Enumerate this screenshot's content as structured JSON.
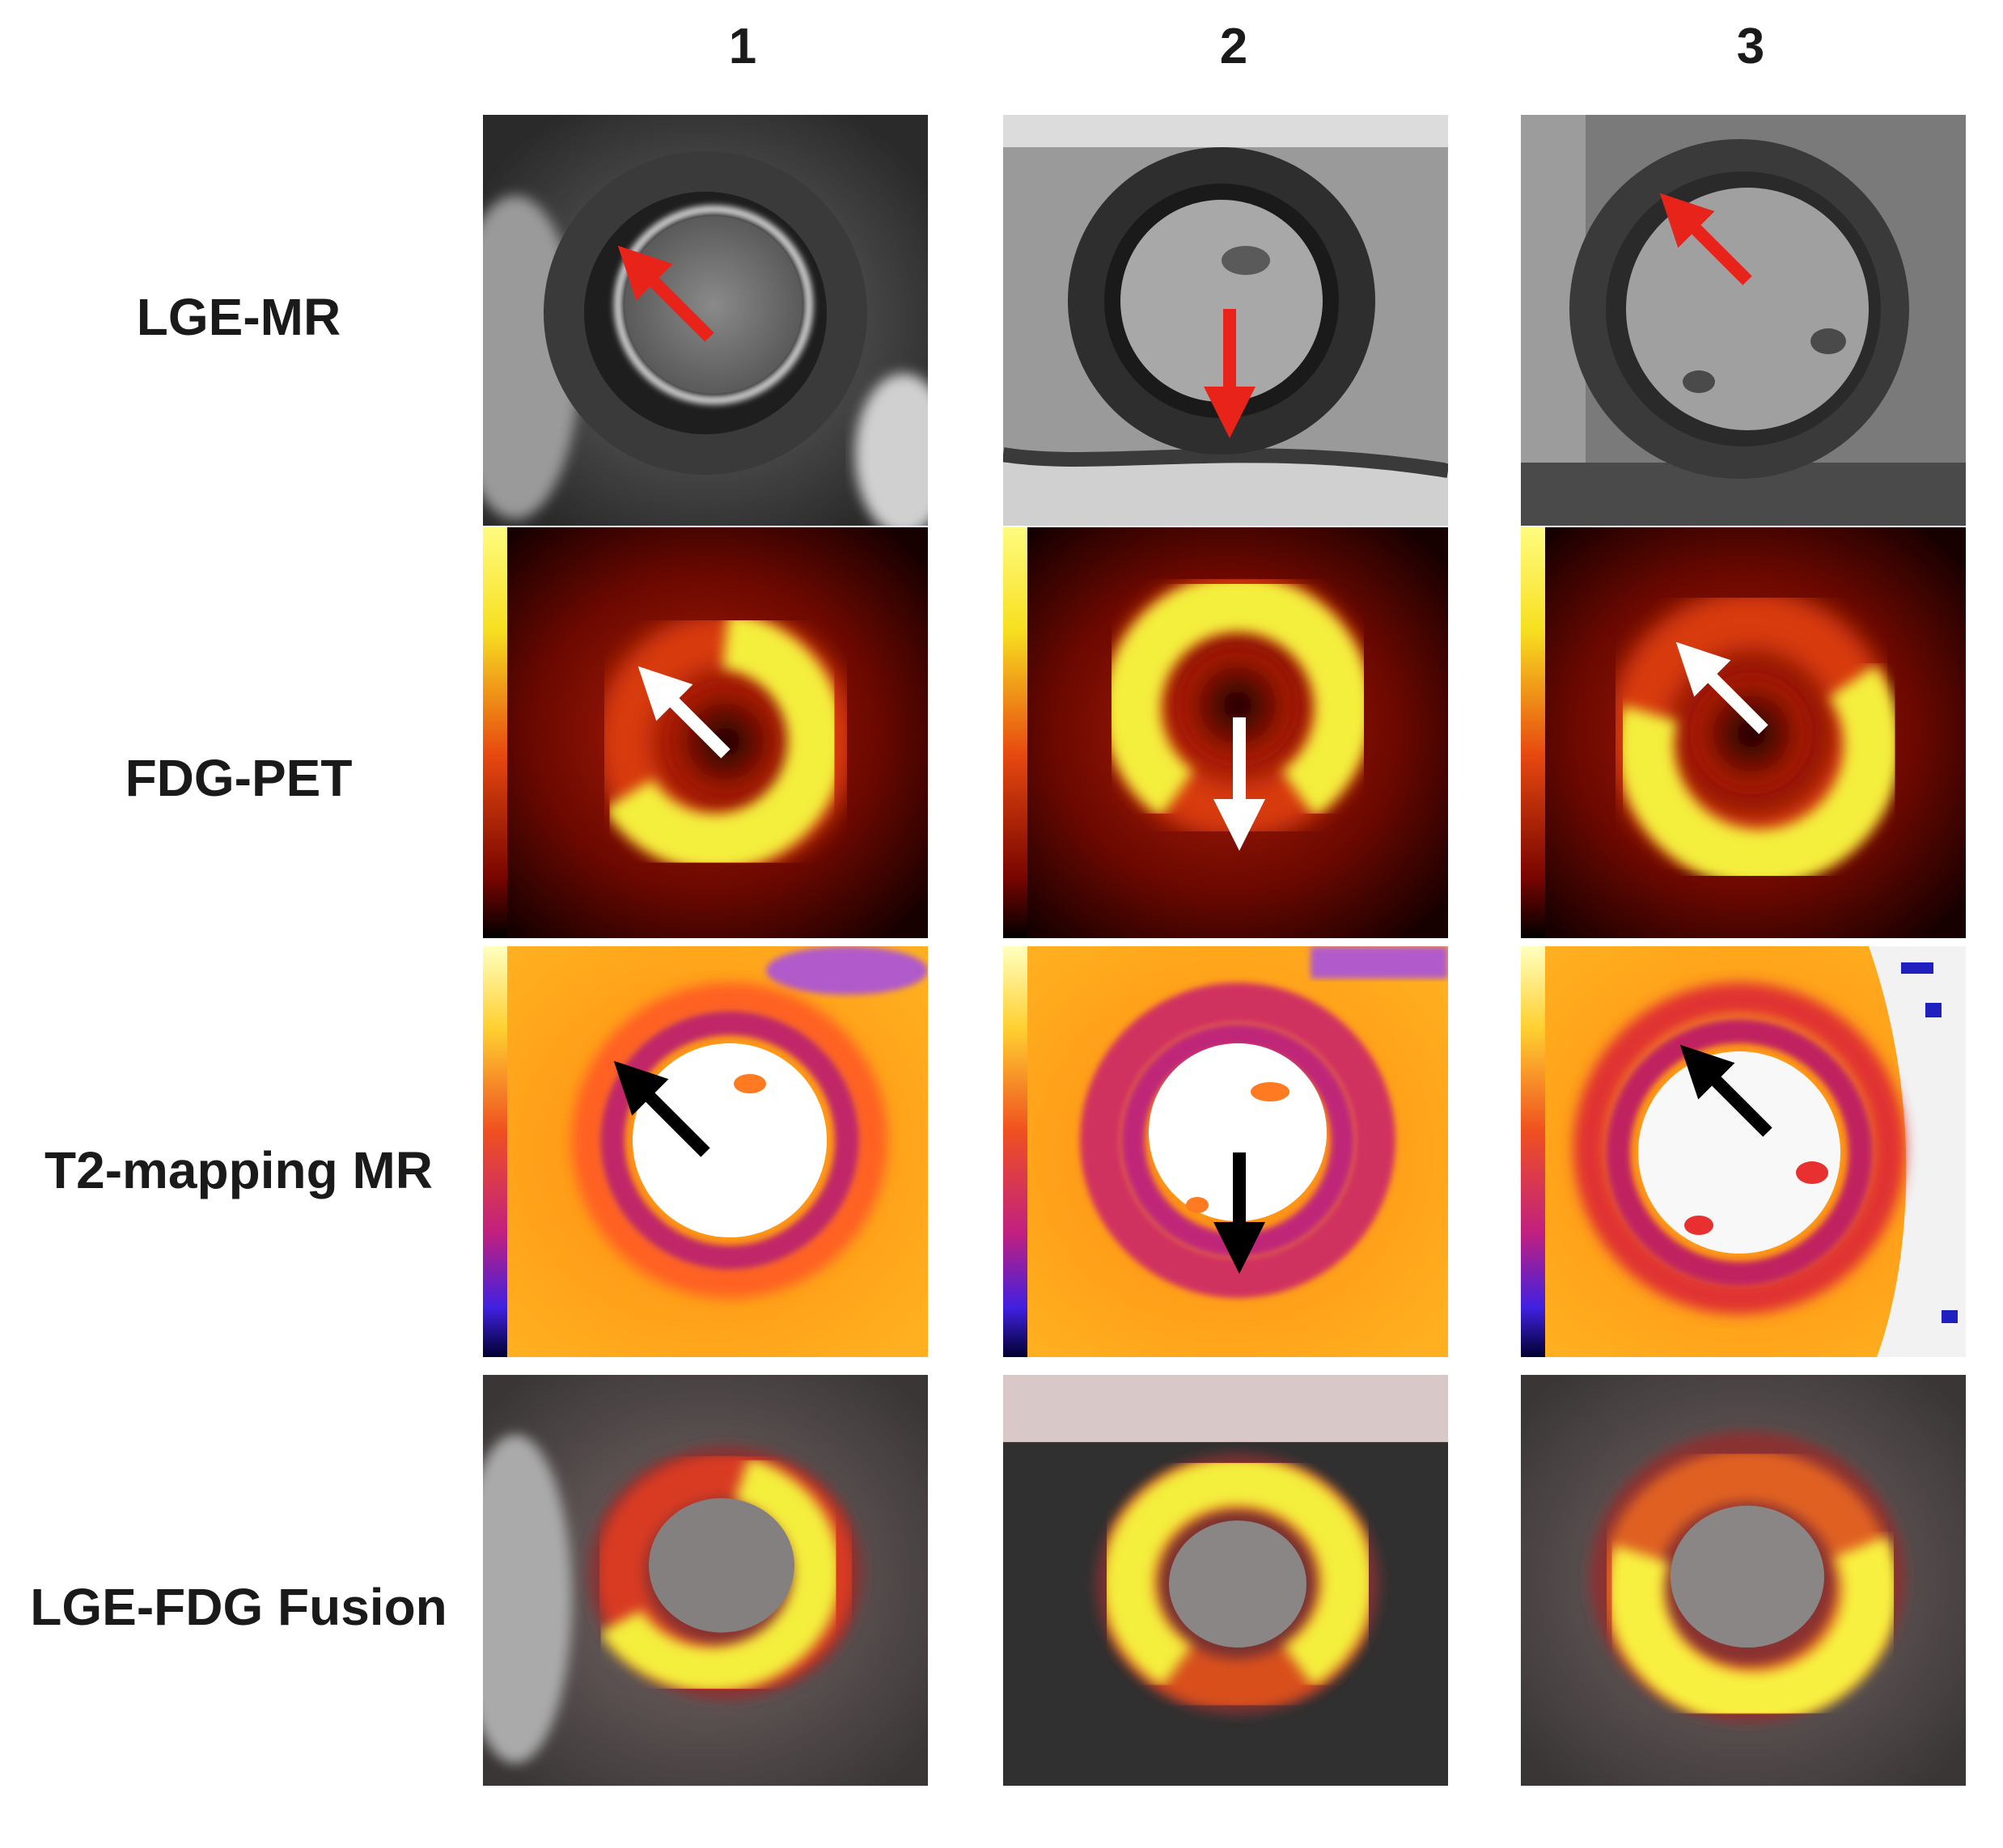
{
  "columns": [
    "1",
    "2",
    "3"
  ],
  "rows": [
    "LGE-MR",
    "FDG-PET",
    "T2-mapping MR",
    "LGE-FDG Fusion"
  ],
  "colors": {
    "arrow_lge": "#e8241a",
    "arrow_pet": "#ffffff",
    "arrow_t2": "#000000",
    "pet_hot": "#f4ee3c",
    "pet_mid": "#e83a10",
    "pet_bg": "#1a0000"
  },
  "arrows": {
    "lge": [
      "diagonal-up-left",
      "down",
      "diagonal-up-left"
    ],
    "pet": [
      "diagonal-up-left",
      "down",
      "diagonal-up-left"
    ],
    "t2": [
      "diagonal-up-left",
      "down",
      "diagonal-up-left"
    ]
  }
}
